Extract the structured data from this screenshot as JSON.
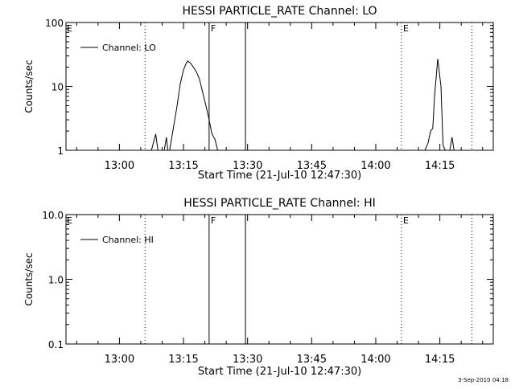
{
  "footer": {
    "timestamp": "3-Sep-2010 04:18"
  },
  "chart_data": [
    {
      "type": "line",
      "title": "HESSI PARTICLE_RATE Channel: LO",
      "xlabel": "Start Time (21-Jul-10 12:47:30)",
      "ylabel": "Counts/sec",
      "y_scale": "log",
      "ylim": [
        1,
        100
      ],
      "y_ticks": [
        "1",
        "10",
        "100"
      ],
      "x_ticks": [
        "13:00",
        "13:15",
        "13:30",
        "13:45",
        "14:00",
        "14:15"
      ],
      "legend": "Channel: LO",
      "legend_placement": "top-left",
      "series": [
        {
          "name": "Channel: LO",
          "segments": [
            [
              [
                "13:07:30",
                1
              ],
              [
                "13:08:30",
                1.8
              ],
              [
                "13:09:00",
                1
              ],
              [
                "13:09:45",
                1
              ],
              [
                "13:10:30",
                1
              ],
              [
                "13:11:00",
                1.6
              ],
              [
                "13:11:20",
                1
              ]
            ],
            [
              [
                "13:11:45",
                1
              ],
              [
                "13:12:45",
                2.5
              ],
              [
                "13:13:30",
                5
              ],
              [
                "13:14:15",
                11
              ],
              [
                "13:15:00",
                18
              ],
              [
                "13:15:30",
                22
              ],
              [
                "13:16:00",
                25
              ],
              [
                "13:16:40",
                23
              ],
              [
                "13:17:20",
                20
              ],
              [
                "13:18:00",
                17
              ],
              [
                "13:18:45",
                13
              ],
              [
                "13:19:30",
                8
              ],
              [
                "13:20:15",
                5
              ],
              [
                "13:21:00",
                3
              ],
              [
                "13:21:40",
                1.8
              ],
              [
                "13:22:20",
                1.5
              ],
              [
                "13:23:00",
                1
              ]
            ],
            [
              [
                "14:11:30",
                1
              ],
              [
                "14:12:15",
                1.3
              ],
              [
                "14:12:50",
                2
              ],
              [
                "14:13:20",
                2.2
              ],
              [
                "14:13:45",
                7
              ],
              [
                "14:14:30",
                27
              ],
              [
                "14:15:15",
                10
              ],
              [
                "14:15:45",
                1.2
              ],
              [
                "14:16:15",
                1
              ]
            ],
            [
              [
                "14:17:20",
                1
              ],
              [
                "14:17:50",
                1.6
              ],
              [
                "14:18:20",
                1
              ]
            ]
          ]
        }
      ],
      "markers": [
        {
          "time": "13:06:00",
          "style": "dotted",
          "label": ""
        },
        {
          "time": "13:21:00",
          "style": "solid",
          "label": "F"
        },
        {
          "time": "13:29:30",
          "style": "solid",
          "label": ""
        },
        {
          "time": "14:06:00",
          "style": "dotted",
          "label": "E"
        },
        {
          "time": "14:22:30",
          "style": "dotted",
          "label": ""
        }
      ],
      "corner_label": "E"
    },
    {
      "type": "line",
      "title": "HESSI PARTICLE_RATE Channel: HI",
      "xlabel": "Start Time (21-Jul-10 12:47:30)",
      "ylabel": "Counts/sec",
      "y_scale": "log",
      "ylim": [
        0.1,
        10
      ],
      "y_ticks": [
        "0.1",
        "1.0",
        "10.0"
      ],
      "x_ticks": [
        "13:00",
        "13:15",
        "13:30",
        "13:45",
        "14:00",
        "14:15"
      ],
      "legend": "Channel: HI",
      "legend_placement": "top-left",
      "series": [
        {
          "name": "Channel: HI",
          "segments": []
        }
      ],
      "markers": [
        {
          "time": "13:06:00",
          "style": "dotted",
          "label": ""
        },
        {
          "time": "13:21:00",
          "style": "solid",
          "label": "F"
        },
        {
          "time": "13:29:30",
          "style": "solid",
          "label": ""
        },
        {
          "time": "14:06:00",
          "style": "dotted",
          "label": "E"
        },
        {
          "time": "14:22:30",
          "style": "dotted",
          "label": ""
        }
      ],
      "corner_label": "E"
    }
  ]
}
